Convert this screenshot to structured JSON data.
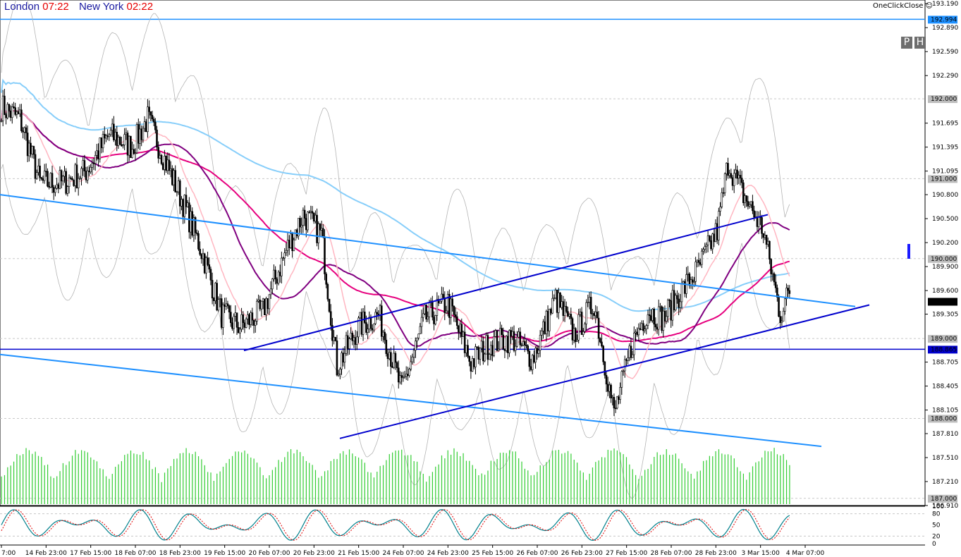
{
  "header": {
    "london_label": "London",
    "london_time": "07:22",
    "newyork_label": "New York",
    "newyork_time": "02:22",
    "one_click_close": "OneClickClose ☺"
  },
  "buttons": {
    "p_label": "P",
    "h_label": "H"
  },
  "colors": {
    "grid": "#c8c8c8",
    "candle": "#000000",
    "resistance_line": "#1e90ff",
    "support_line": "#0000cd",
    "price_tag": "#000000",
    "volume": "#32cd32",
    "ma_fast": "#ffb6c1",
    "ma_mid": "#800080",
    "ma_slow": "#e6007e",
    "ma_long": "#87cefa",
    "envelope": "#b4b4b4",
    "stoch_main": "#00808c",
    "stoch_signal": "#e00000"
  },
  "chart_data": {
    "type": "candlestick",
    "title": "",
    "y_axis": {
      "min": 186.91,
      "max": 193.13,
      "tick_labels": [
        "193.190",
        "192.890",
        "192.590",
        "192.290",
        "191.695",
        "191.395",
        "191.095",
        "190.800",
        "190.500",
        "190.200",
        "189.900",
        "189.600",
        "189.305",
        "188.705",
        "188.405",
        "188.105",
        "187.810",
        "187.510",
        "187.210",
        "186.910"
      ],
      "tick_values": [
        193.19,
        192.89,
        192.59,
        192.29,
        191.695,
        191.395,
        191.095,
        190.8,
        190.5,
        190.2,
        189.9,
        189.6,
        189.305,
        188.705,
        188.405,
        188.105,
        187.81,
        187.51,
        187.21,
        186.91
      ]
    },
    "x_axis": {
      "tick_labels": [
        "7:00",
        "14 Feb 23:00",
        "17 Feb 15:00",
        "18 Feb 07:00",
        "18 Feb 23:00",
        "19 Feb 15:00",
        "20 Feb 07:00",
        "20 Feb 23:00",
        "21 Feb 15:00",
        "24 Feb 07:00",
        "24 Feb 23:00",
        "25 Feb 15:00",
        "26 Feb 07:00",
        "26 Feb 23:00",
        "27 Feb 15:00",
        "28 Feb 07:00",
        "28 Feb 23:00",
        "3 Mar 15:00",
        "4 Mar 07:00"
      ]
    },
    "price_levels": [
      {
        "label": "192.994",
        "value": 192.994,
        "kind": "resistance"
      },
      {
        "label": "192.000",
        "value": 192.0,
        "kind": "round"
      },
      {
        "label": "191.000",
        "value": 191.0,
        "kind": "round"
      },
      {
        "label": "190.000",
        "value": 190.0,
        "kind": "round"
      },
      {
        "label": "189.000",
        "value": 189.0,
        "kind": "round"
      },
      {
        "label": "188.865",
        "value": 188.865,
        "kind": "support"
      },
      {
        "label": "188.000",
        "value": 188.0,
        "kind": "round"
      },
      {
        "label": "187.000",
        "value": 187.0,
        "kind": "round"
      }
    ],
    "current_price": {
      "label": "189.464",
      "value": 189.464
    },
    "candles_close_key": [
      [
        0,
        191.9
      ],
      [
        12,
        191.75
      ],
      [
        25,
        190.95
      ],
      [
        40,
        190.95
      ],
      [
        55,
        191.1
      ],
      [
        70,
        191.55
      ],
      [
        85,
        191.4
      ],
      [
        95,
        191.75
      ],
      [
        108,
        191.15
      ],
      [
        118,
        190.7
      ],
      [
        130,
        190.1
      ],
      [
        143,
        189.3
      ],
      [
        155,
        189.15
      ],
      [
        170,
        189.35
      ],
      [
        185,
        190.1
      ],
      [
        196,
        190.55
      ],
      [
        208,
        190.3
      ],
      [
        218,
        188.65
      ],
      [
        232,
        189.15
      ],
      [
        245,
        189.3
      ],
      [
        260,
        188.35
      ],
      [
        275,
        189.25
      ],
      [
        290,
        189.45
      ],
      [
        305,
        188.7
      ],
      [
        318,
        188.95
      ],
      [
        332,
        189.0
      ],
      [
        345,
        188.75
      ],
      [
        360,
        189.5
      ],
      [
        372,
        189.05
      ],
      [
        385,
        189.45
      ],
      [
        398,
        188.05
      ],
      [
        410,
        188.95
      ],
      [
        420,
        189.35
      ],
      [
        430,
        189.25
      ],
      [
        440,
        189.55
      ],
      [
        452,
        189.85
      ],
      [
        465,
        190.35
      ],
      [
        472,
        191.2
      ],
      [
        482,
        190.8
      ],
      [
        495,
        190.35
      ],
      [
        506,
        189.3
      ],
      [
        512,
        189.6
      ]
    ],
    "n_candles": 513,
    "trend_lines": [
      {
        "name": "upper-falling",
        "color": "resistance",
        "from": [
          0,
          190.8
        ],
        "to": [
          1213,
          189.4
        ]
      },
      {
        "name": "lower-falling",
        "color": "resistance",
        "from": [
          0,
          188.8
        ],
        "to": [
          1165,
          187.65
        ]
      },
      {
        "name": "channel-bottom",
        "color": "support",
        "from": [
          482,
          187.75
        ],
        "to": [
          1233,
          189.42
        ]
      },
      {
        "name": "channel-top",
        "color": "support",
        "from": [
          346,
          188.85
        ],
        "to": [
          1089,
          190.55
        ]
      }
    ],
    "stochastic": {
      "y_labels": [
        "100",
        "80",
        "50",
        "20",
        "0"
      ],
      "y_values": [
        100,
        80,
        50,
        20,
        0
      ]
    }
  }
}
